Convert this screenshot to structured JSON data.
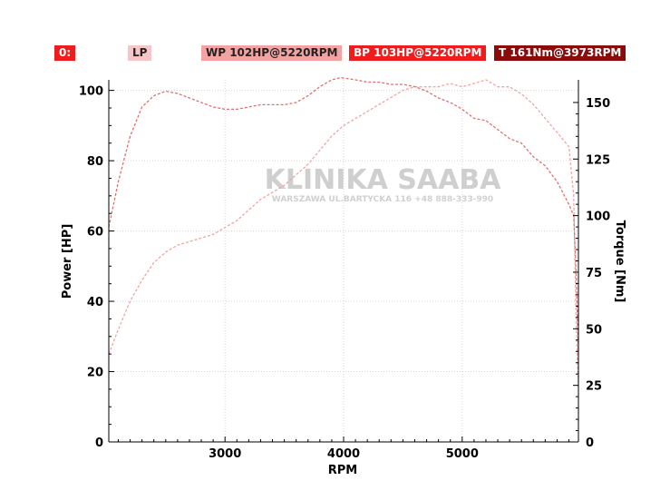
{
  "legend": [
    {
      "label": "0:",
      "bg": "#ee1c1c",
      "color": "#ffffff"
    },
    {
      "label": "LP",
      "bg": "#f7c6c8",
      "color": "#222222"
    },
    {
      "label": "WP 102HP@5220RPM",
      "bg": "#f4a3a3",
      "color": "#222222"
    },
    {
      "label": "BP 103HP@5220RPM",
      "bg": "#ee1c1c",
      "color": "#ffffff"
    },
    {
      "label": "T 161Nm@3973RPM",
      "bg": "#8b0a0a",
      "color": "#ffffff"
    }
  ],
  "watermark": {
    "title": "KLINIKA SAABA",
    "subtitle": "WARSZAWA UL.BARTYCKA 116 +48 888-333-990"
  },
  "chart_data": {
    "type": "line",
    "xlabel": "RPM",
    "ylabel": "Power [HP]",
    "y2label": "Torque [Nm]",
    "xlim": [
      2020,
      5980
    ],
    "ylim": [
      0,
      103
    ],
    "y2lim": [
      0,
      160
    ],
    "xticks": [
      3000,
      4000,
      5000
    ],
    "yticks": [
      0,
      20,
      40,
      60,
      80,
      100
    ],
    "y2ticks": [
      0,
      25,
      50,
      75,
      100,
      125,
      150
    ],
    "grid": true,
    "series": [
      {
        "name": "Power",
        "axis": "left",
        "color": "#f4a3a3",
        "x": [
          2020,
          2100,
          2200,
          2300,
          2400,
          2500,
          2600,
          2700,
          2800,
          2900,
          3000,
          3100,
          3200,
          3300,
          3400,
          3500,
          3600,
          3700,
          3800,
          3900,
          4000,
          4100,
          4200,
          4300,
          4400,
          4500,
          4600,
          4700,
          4800,
          4900,
          5000,
          5100,
          5200,
          5300,
          5400,
          5500,
          5600,
          5700,
          5800,
          5900,
          5940,
          5960,
          5980
        ],
        "y": [
          25,
          32,
          40,
          46,
          51,
          54,
          56,
          57,
          58,
          59,
          61,
          63,
          66,
          69,
          71,
          73,
          76,
          79,
          83,
          87,
          90,
          92,
          94,
          96,
          98,
          100,
          101,
          101,
          101,
          102,
          101,
          102,
          103,
          101,
          101,
          99,
          96,
          92,
          88,
          84,
          70,
          35,
          15
        ]
      },
      {
        "name": "Torque",
        "axis": "right",
        "color": "#e07070",
        "x": [
          2020,
          2100,
          2200,
          2300,
          2400,
          2500,
          2600,
          2700,
          2800,
          2900,
          3000,
          3100,
          3200,
          3300,
          3400,
          3500,
          3600,
          3700,
          3800,
          3900,
          3973,
          4100,
          4200,
          4300,
          4400,
          4500,
          4600,
          4700,
          4800,
          4900,
          5000,
          5100,
          5200,
          5300,
          5400,
          5500,
          5600,
          5700,
          5800,
          5900,
          5940,
          5960,
          5980
        ],
        "y": [
          95,
          115,
          135,
          148,
          153,
          155,
          154,
          152,
          150,
          148,
          147,
          147,
          148,
          149,
          149,
          149,
          150,
          153,
          157,
          160,
          161,
          160,
          159,
          159,
          158,
          158,
          157,
          155,
          152,
          150,
          147,
          143,
          142,
          138,
          134,
          132,
          126,
          122,
          115,
          105,
          100,
          75,
          40
        ]
      }
    ]
  }
}
